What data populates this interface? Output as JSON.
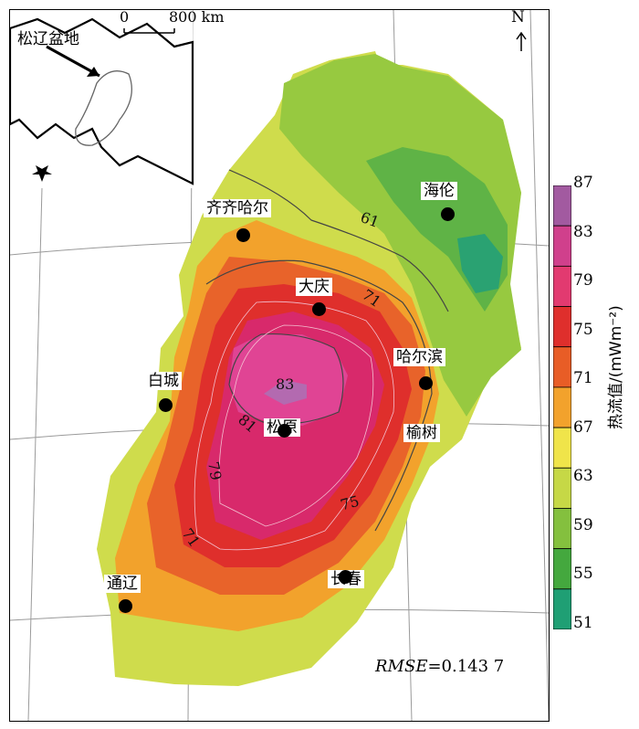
{
  "map": {
    "basin_label": "松辽盆地",
    "scale": {
      "zero": "0",
      "distance": "800 km"
    },
    "north": "N",
    "rmse": {
      "label": "RMSE",
      "value": "=0.143 7"
    }
  },
  "cities": [
    {
      "id": "qiqihar",
      "name": "齐齐哈尔"
    },
    {
      "id": "hailun",
      "name": "海伦"
    },
    {
      "id": "daqing",
      "name": "大庆"
    },
    {
      "id": "harbin",
      "name": "哈尔滨"
    },
    {
      "id": "baicheng",
      "name": "白城"
    },
    {
      "id": "songyuan",
      "name": "松原"
    },
    {
      "id": "yushu",
      "name": "榆树"
    },
    {
      "id": "changchun",
      "name": "长春"
    },
    {
      "id": "tongliao",
      "name": "通辽"
    }
  ],
  "contour_labels": [
    "61",
    "71",
    "83",
    "81",
    "79",
    "75",
    "71"
  ],
  "legend": {
    "title": "热流值/(mWm⁻²)",
    "ticks": [
      "87",
      "83",
      "79",
      "75",
      "71",
      "67",
      "63",
      "59",
      "55",
      "51"
    ],
    "colors": [
      "#a25aa0",
      "#d0408c",
      "#e23a70",
      "#df2f2c",
      "#e85d26",
      "#f2a22c",
      "#f0e44a",
      "#c6d846",
      "#84c03e",
      "#44a83e",
      "#1f9f74"
    ]
  }
}
